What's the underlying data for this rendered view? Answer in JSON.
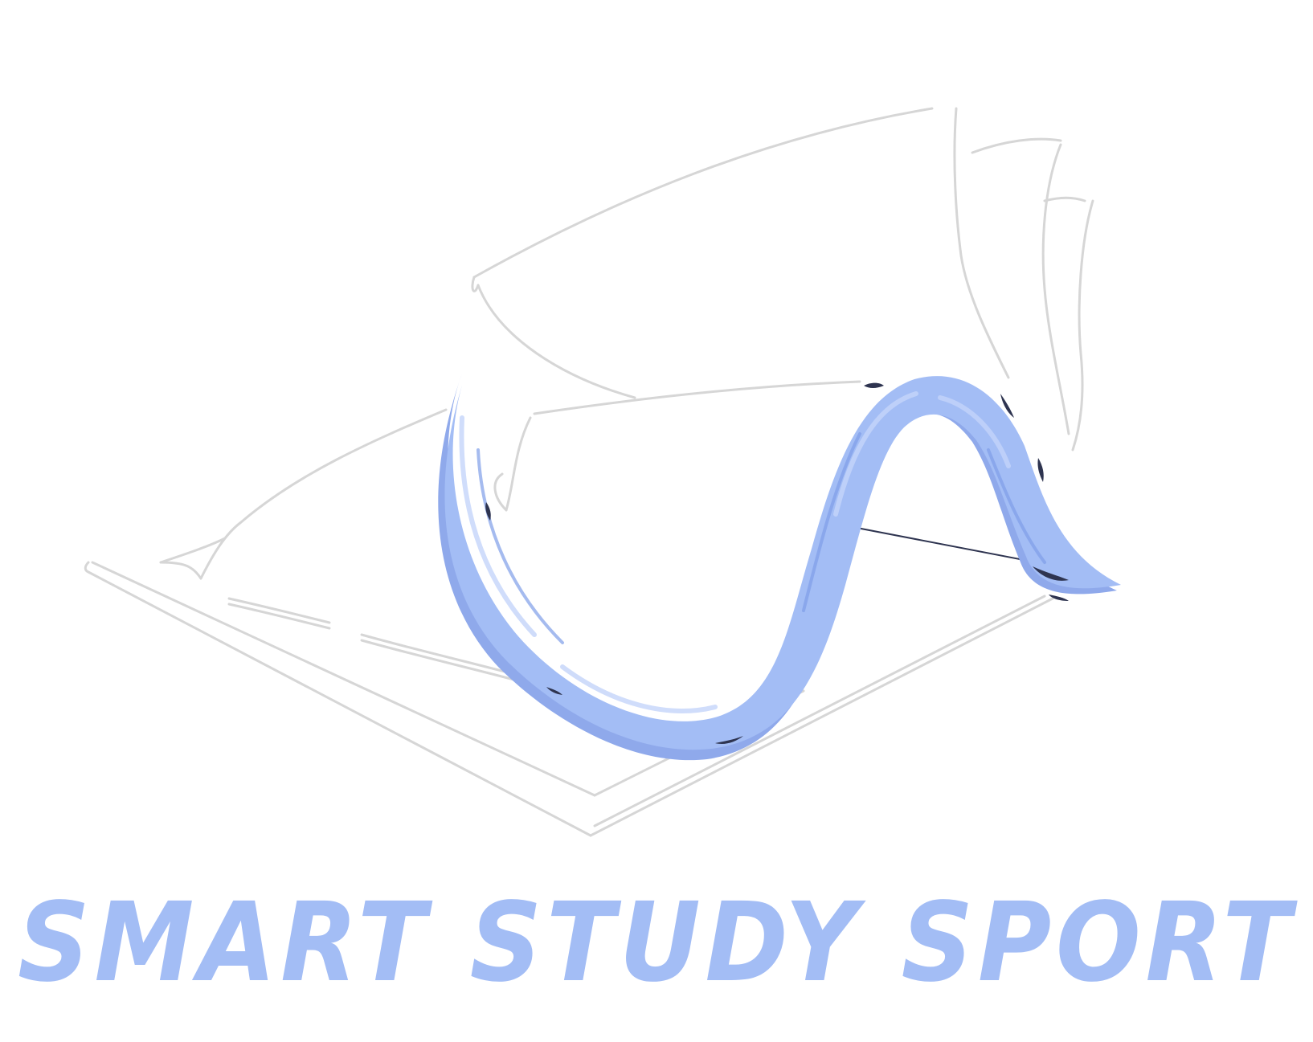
{
  "brand": {
    "wordmark": "SMART STUDY SPORT",
    "accent_color": "#a3bdf5",
    "accent_dark": "#7f9ee8",
    "ink_color": "#2e3450",
    "outline_color": "#d9d9d9"
  },
  "logo": {
    "icon_name": "open-book-wave-icon"
  }
}
